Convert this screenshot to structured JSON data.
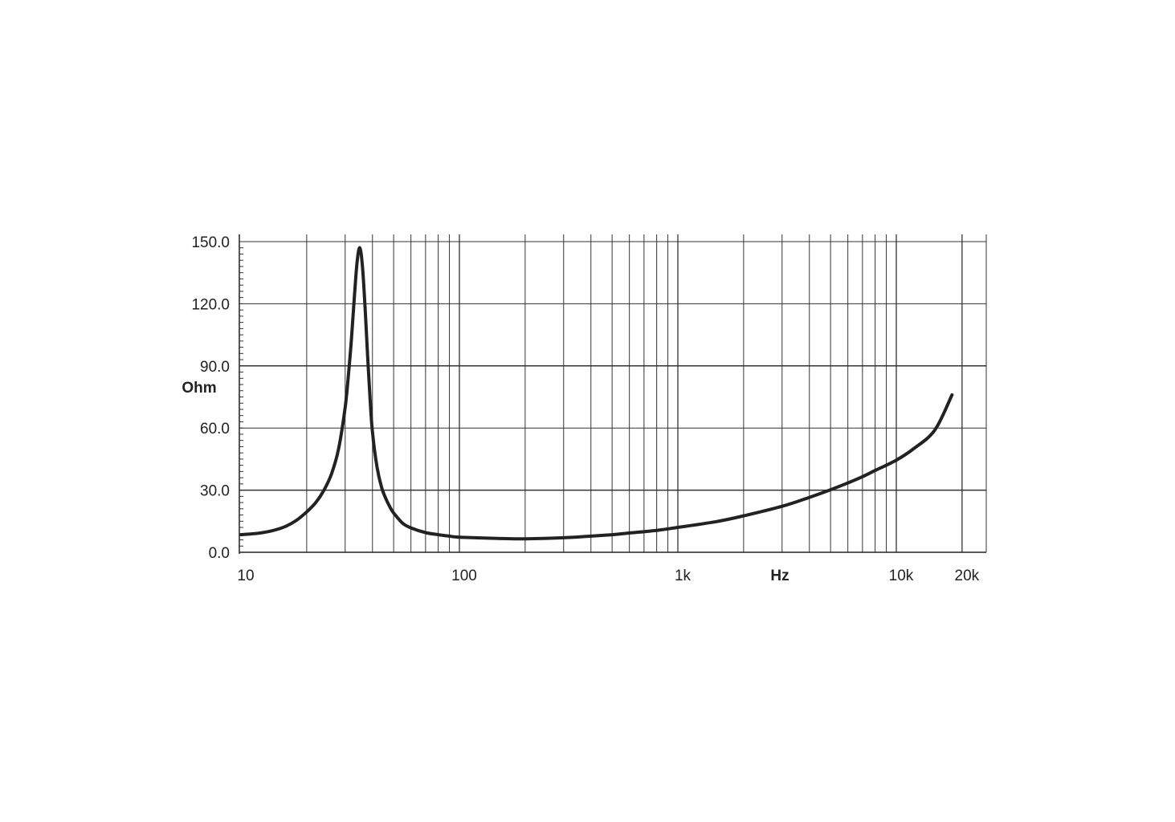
{
  "chart_data": {
    "type": "line",
    "title": "",
    "xlabel": "Hz",
    "ylabel": "Ohm",
    "x_scale": "log",
    "xlim": [
      10,
      20000
    ],
    "ylim": [
      0,
      150
    ],
    "grid": true,
    "x_tick_labels": [
      {
        "value": 10,
        "label": "10"
      },
      {
        "value": 100,
        "label": "100"
      },
      {
        "value": 1000,
        "label": "1k"
      },
      {
        "value": 10000,
        "label": "10k"
      },
      {
        "value": 20000,
        "label": "20k"
      }
    ],
    "y_tick_labels": [
      {
        "value": 0,
        "label": "0.0"
      },
      {
        "value": 30,
        "label": "30.0"
      },
      {
        "value": 60,
        "label": "60.0"
      },
      {
        "value": 90,
        "label": "90.0"
      },
      {
        "value": 120,
        "label": "120.0"
      },
      {
        "value": 150,
        "label": "150.0"
      }
    ],
    "x_gridlines": [
      20,
      30,
      40,
      50,
      60,
      70,
      80,
      90,
      100,
      200,
      300,
      400,
      500,
      600,
      700,
      800,
      900,
      1000,
      2000,
      3000,
      4000,
      5000,
      6000,
      7000,
      8000,
      9000,
      10000,
      20000
    ],
    "y_gridlines": [
      30,
      60,
      90,
      120,
      150
    ],
    "series": [
      {
        "color": "#222222",
        "x": [
          10,
          12,
          14,
          16,
          18,
          20,
          22,
          24,
          26,
          28,
          30,
          31,
          32,
          33,
          34,
          35,
          36,
          37,
          38,
          39,
          40,
          42,
          44,
          46,
          48,
          50,
          55,
          60,
          70,
          80,
          90,
          100,
          150,
          200,
          300,
          400,
          500,
          600,
          800,
          1000,
          1500,
          2000,
          3000,
          4000,
          5000,
          6000,
          7000,
          8000,
          10000,
          12000,
          15000,
          18000
        ],
        "y": [
          8.5,
          9.2,
          10.5,
          12.5,
          15.5,
          19.5,
          24.0,
          30.0,
          38.0,
          50.0,
          70.0,
          85.0,
          102.0,
          122.0,
          140.0,
          147.0,
          138.0,
          118.0,
          95.0,
          74.0,
          58.0,
          41.0,
          31.5,
          26.0,
          22.0,
          19.0,
          14.0,
          11.8,
          9.5,
          8.5,
          7.8,
          7.3,
          6.7,
          6.5,
          7.0,
          7.8,
          8.5,
          9.3,
          10.6,
          12.0,
          14.8,
          17.6,
          22.2,
          26.5,
          30.2,
          33.5,
          36.5,
          39.5,
          44.5,
          50.0,
          59.0,
          76.0
        ]
      }
    ]
  }
}
